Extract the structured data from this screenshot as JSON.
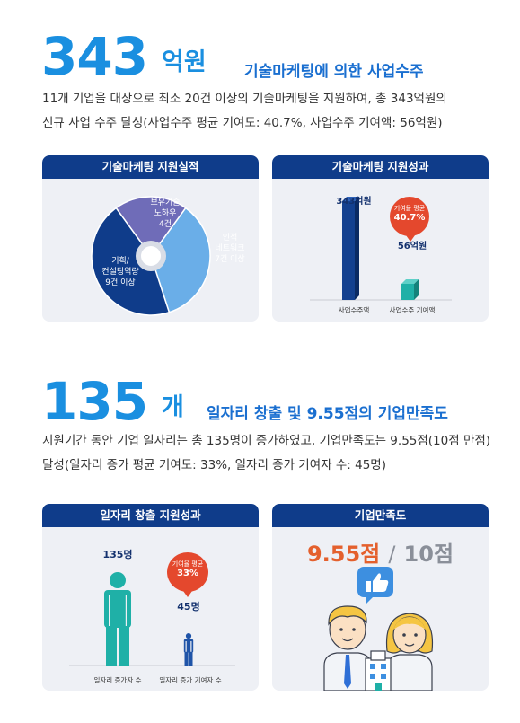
{
  "section1": {
    "number": "343",
    "unit": "억원",
    "headline": "기술마케팅에 의한 사업수주",
    "desc_line1": "11개 기업을 대상으로 최소 20건 이상의 기술마케팅을 지원하여, 총 343억원의",
    "desc_line2": "신규 사업 수주 달성(사업수주 평균 기여도: 40.7%, 사업수주 기여액: 56억원)"
  },
  "panel_marketing": {
    "title": "기술마케팅 지원실적",
    "slices": [
      {
        "label_lines": [
          "보유기술",
          "노하우",
          "4건"
        ],
        "value": 4,
        "color": "#6f6cb8"
      },
      {
        "label_lines": [
          "인적",
          "네트워크",
          "7건 이상"
        ],
        "value": 7,
        "color": "#6aaee8"
      },
      {
        "label_lines": [
          "기획/",
          "컨설팅역량",
          "9건 이상"
        ],
        "value": 9,
        "color": "#0f3c8a"
      }
    ]
  },
  "panel_result": {
    "title": "기술마케팅 지원성과",
    "bars": [
      {
        "value_label": "343억원",
        "value": 343,
        "axis_label": "사업수주액"
      },
      {
        "value_label": "56억원",
        "value": 56,
        "axis_label": "사업수주 기여액"
      }
    ],
    "bubble_small": "기여율 평균",
    "bubble_pct": "40.7%"
  },
  "section2": {
    "number": "135",
    "unit": "개",
    "headline": "일자리 창출 및 9.55점의 기업만족도",
    "desc_line1": "지원기간 동안 기업 일자리는 총 135명이 증가하였고, 기업만족도는 9.55점(10점 만점)",
    "desc_line2": "달성(일자리 증가 평균 기여도: 33%, 일자리 증가 기여자 수: 45명)"
  },
  "panel_jobs": {
    "title": "일자리 창출 지원성과",
    "items": [
      {
        "value_label": "135명",
        "value": 135,
        "axis_label": "일자리 증가자 수",
        "color": "#1fb0a7"
      },
      {
        "value_label": "45명",
        "value": 45,
        "axis_label": "일자리 증가 기여자 수",
        "color": "#1f54a8"
      }
    ],
    "bubble_small": "기여율 평균",
    "bubble_pct": "33%"
  },
  "panel_satisfaction": {
    "title": "기업만족도",
    "score": "9.55점",
    "separator": "/",
    "max": "10점",
    "score_color": "#e4602d",
    "max_color": "#8a8f99"
  }
}
